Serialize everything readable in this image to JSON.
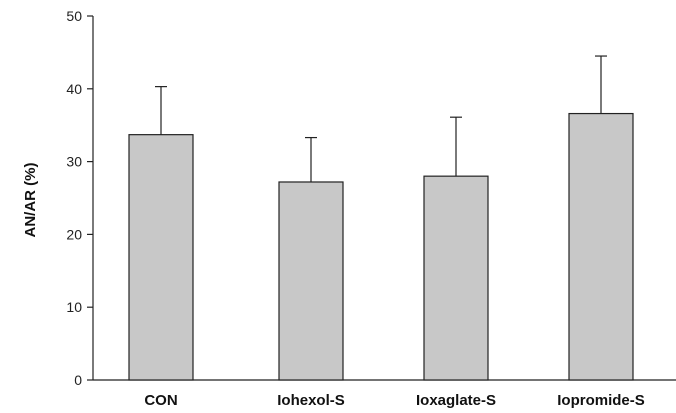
{
  "chart_data": {
    "type": "bar",
    "title": "",
    "xlabel": "",
    "ylabel": "AN/AR (%)",
    "ylim": [
      0,
      50
    ],
    "yticks": [
      "0",
      "10",
      "20",
      "30",
      "40",
      "50"
    ],
    "categories": [
      "CON",
      "Iohexol-S",
      "Ioxaglate-S",
      "Iopromide-S"
    ],
    "values": [
      33.7,
      27.2,
      28.0,
      36.6
    ],
    "error_upper": [
      6.6,
      6.1,
      8.1,
      7.9
    ],
    "bar_color": "#c8c8c8",
    "bar_edge_color": "#222222",
    "grid": false,
    "legend": "none"
  }
}
